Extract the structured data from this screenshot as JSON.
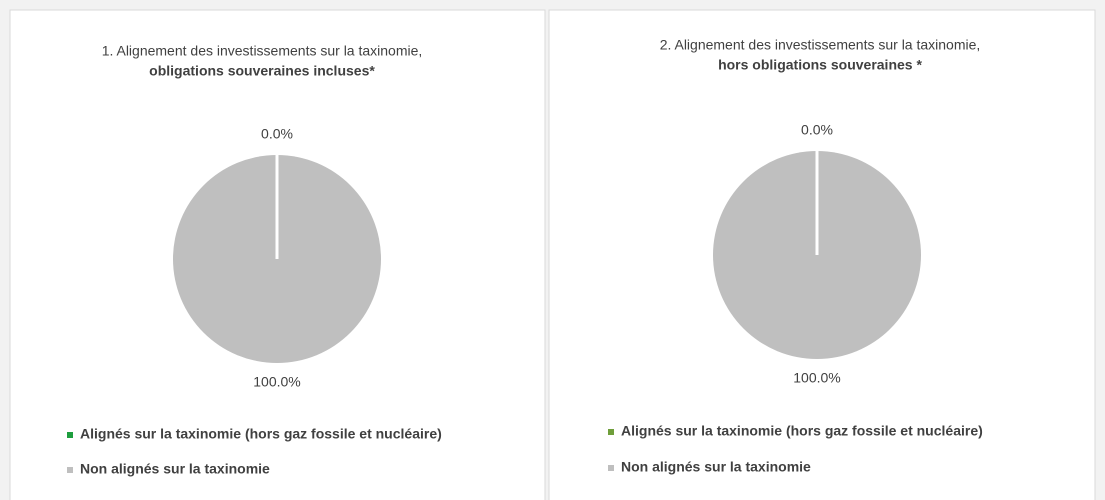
{
  "chart_data": [
    {
      "type": "pie",
      "title": "1. Alignement des investissements sur la taxinomie,",
      "subtitle": "obligations souveraines incluses*",
      "categories": [
        "Alignés sur la taxinomie (hors gaz fossile et nucléaire)",
        "Non alignés sur la taxinomie"
      ],
      "values": [
        0.0,
        100.0
      ],
      "value_labels": [
        "0.0%",
        "100.0%"
      ],
      "colors": [
        "#1e9e3e",
        "#bfbfbf"
      ]
    },
    {
      "type": "pie",
      "title": "2. Alignement des investissements sur la taxinomie,",
      "subtitle": "hors obligations souveraines *",
      "categories": [
        "Alignés sur la taxinomie (hors gaz fossile et nucléaire)",
        "Non alignés sur la taxinomie"
      ],
      "values": [
        0.0,
        100.0
      ],
      "value_labels": [
        "0.0%",
        "100.0%"
      ],
      "colors": [
        "#6f9e3a",
        "#bfbfbf"
      ]
    }
  ]
}
